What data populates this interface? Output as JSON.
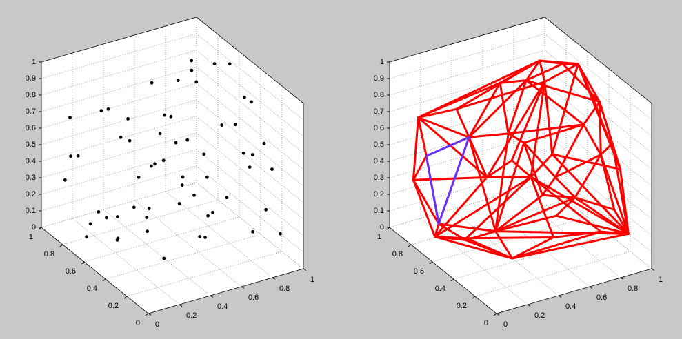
{
  "chart_data": [
    {
      "type": "scatter3d",
      "color": "#000000",
      "grid": true,
      "xlim": [
        0,
        1
      ],
      "ylim": [
        0,
        1
      ],
      "zlim": [
        0,
        1
      ],
      "xticks": [
        0,
        0.2,
        0.4,
        0.6,
        0.8,
        1
      ],
      "yticks": [
        0,
        0.2,
        0.4,
        0.6,
        0.8,
        1
      ],
      "zticks": [
        0,
        0.1,
        0.2,
        0.3,
        0.4,
        0.5,
        0.6,
        0.7,
        0.8,
        0.9,
        1
      ],
      "x": [
        0.12,
        0.85,
        0.45,
        0.91,
        0.33,
        0.67,
        0.05,
        0.78,
        0.56,
        0.22,
        0.95,
        0.41,
        0.63,
        0.18,
        0.88,
        0.29,
        0.74,
        0.52,
        0.09,
        0.37,
        0.81,
        0.6,
        0.15,
        0.97,
        0.48,
        0.26,
        0.7,
        0.03,
        0.58,
        0.84,
        0.35,
        0.93,
        0.11,
        0.66,
        0.44,
        0.2,
        0.76,
        0.5,
        0.31,
        0.89,
        0.07,
        0.62,
        0.98,
        0.24,
        0.55,
        0.8,
        0.14,
        0.69,
        0.39,
        0.02,
        0.87,
        0.46,
        0.73,
        0.17,
        0.94,
        0.28,
        0.6,
        0.83,
        0.4,
        0.1
      ],
      "y": [
        0.9,
        0.15,
        0.62,
        0.8,
        0.05,
        0.44,
        0.33,
        0.92,
        0.21,
        0.71,
        0.48,
        0.97,
        0.1,
        0.55,
        0.3,
        0.86,
        0.67,
        0.02,
        0.14,
        0.39,
        0.77,
        0.58,
        0.95,
        0.25,
        0.83,
        0.12,
        0.04,
        0.7,
        0.36,
        0.6,
        0.5,
        0.9,
        0.45,
        0.27,
        0.08,
        0.18,
        0.96,
        0.74,
        0.64,
        0.4,
        0.88,
        0.99,
        0.66,
        0.32,
        0.52,
        0.06,
        0.78,
        0.85,
        0.2,
        0.57,
        0.94,
        0.35,
        0.11,
        0.42,
        0.13,
        0.69,
        0.81,
        0.24,
        0.03,
        0.61
      ],
      "z": [
        0.45,
        0.72,
        0.95,
        0.3,
        0.6,
        0.05,
        0.88,
        0.5,
        0.35,
        0.15,
        0.8,
        0.62,
        0.92,
        0.25,
        0.1,
        0.7,
        0.98,
        0.55,
        0.4,
        0.03,
        0.85,
        0.2,
        0.65,
        0.48,
        0.08,
        0.9,
        0.75,
        0.58,
        0.12,
        0.97,
        0.28,
        0.68,
        0.18,
        0.82,
        0.43,
        0.94,
        0.22,
        0.06,
        0.76,
        0.52,
        0.33,
        0.14,
        0.9,
        0.66,
        0.99,
        0.38,
        0.02,
        0.57,
        0.84,
        0.24,
        0.1,
        0.47,
        0.63,
        0.78,
        0.16,
        0.02,
        0.32,
        0.93,
        0.7,
        0.27
      ]
    },
    {
      "type": "hull3d",
      "color": "#ff0000",
      "highlight_color": "#6633ff",
      "highlight_face": [
        6,
        27,
        49
      ],
      "grid": true,
      "xlim": [
        0,
        1
      ],
      "ylim": [
        0,
        1
      ],
      "zlim": [
        0,
        1
      ],
      "xticks": [
        0,
        0.2,
        0.4,
        0.6,
        0.8,
        1
      ],
      "yticks": [
        0,
        0.2,
        0.4,
        0.6,
        0.8,
        1
      ],
      "zticks": [
        0,
        0.1,
        0.2,
        0.3,
        0.4,
        0.5,
        0.6,
        0.7,
        0.8,
        0.9,
        1
      ],
      "x": [
        0.12,
        0.85,
        0.45,
        0.91,
        0.33,
        0.67,
        0.05,
        0.78,
        0.56,
        0.22,
        0.95,
        0.41,
        0.63,
        0.18,
        0.88,
        0.29,
        0.74,
        0.52,
        0.09,
        0.37,
        0.81,
        0.6,
        0.15,
        0.97,
        0.48,
        0.26,
        0.7,
        0.03,
        0.58,
        0.84,
        0.35,
        0.93,
        0.11,
        0.66,
        0.44,
        0.2,
        0.76,
        0.5,
        0.31,
        0.89,
        0.07,
        0.62,
        0.98,
        0.24,
        0.55,
        0.8,
        0.14,
        0.69,
        0.39,
        0.02,
        0.87,
        0.46,
        0.73,
        0.17,
        0.94,
        0.28,
        0.6,
        0.83,
        0.4,
        0.1
      ],
      "y": [
        0.9,
        0.15,
        0.62,
        0.8,
        0.05,
        0.44,
        0.33,
        0.92,
        0.21,
        0.71,
        0.48,
        0.97,
        0.1,
        0.55,
        0.3,
        0.86,
        0.67,
        0.02,
        0.14,
        0.39,
        0.77,
        0.58,
        0.95,
        0.25,
        0.83,
        0.12,
        0.04,
        0.7,
        0.36,
        0.6,
        0.5,
        0.9,
        0.45,
        0.27,
        0.08,
        0.18,
        0.96,
        0.74,
        0.64,
        0.4,
        0.88,
        0.99,
        0.66,
        0.32,
        0.52,
        0.06,
        0.78,
        0.85,
        0.2,
        0.57,
        0.94,
        0.35,
        0.11,
        0.42,
        0.13,
        0.69,
        0.81,
        0.24,
        0.03,
        0.61
      ],
      "z": [
        0.45,
        0.72,
        0.95,
        0.3,
        0.6,
        0.05,
        0.88,
        0.5,
        0.35,
        0.15,
        0.8,
        0.62,
        0.92,
        0.25,
        0.1,
        0.7,
        0.98,
        0.55,
        0.4,
        0.03,
        0.85,
        0.2,
        0.65,
        0.48,
        0.08,
        0.9,
        0.75,
        0.58,
        0.12,
        0.97,
        0.28,
        0.68,
        0.18,
        0.82,
        0.43,
        0.94,
        0.22,
        0.06,
        0.76,
        0.52,
        0.33,
        0.14,
        0.9,
        0.66,
        0.99,
        0.38,
        0.02,
        0.57,
        0.84,
        0.24,
        0.1,
        0.47,
        0.63,
        0.78,
        0.16,
        0.02,
        0.32,
        0.93,
        0.7,
        0.27
      ]
    }
  ]
}
